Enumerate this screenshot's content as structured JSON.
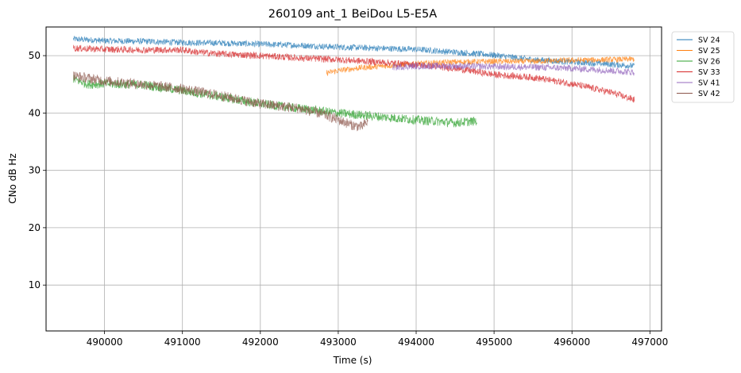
{
  "chart_data": {
    "type": "line",
    "title": "260109 ant_1 BeiDou L5-E5A",
    "xlabel": "Time (s)",
    "ylabel": "CNo dB Hz",
    "xlim": [
      489250,
      497150
    ],
    "ylim": [
      2,
      55
    ],
    "xticks": [
      490000,
      491000,
      492000,
      493000,
      494000,
      495000,
      496000,
      497000
    ],
    "yticks": [
      10,
      20,
      30,
      40,
      50
    ],
    "grid": true,
    "legend_position": "upper-right-outside",
    "series": [
      {
        "name": "SV 24",
        "color": "#1f77b4",
        "noise": 0.55,
        "points": [
          [
            489600,
            52.9
          ],
          [
            490000,
            52.6
          ],
          [
            490500,
            52.5
          ],
          [
            491000,
            52.3
          ],
          [
            491500,
            52.2
          ],
          [
            492000,
            52.0
          ],
          [
            492500,
            51.8
          ],
          [
            493000,
            51.5
          ],
          [
            493500,
            51.3
          ],
          [
            494000,
            51.1
          ],
          [
            494500,
            50.6
          ],
          [
            495000,
            50.1
          ],
          [
            495500,
            49.3
          ],
          [
            496000,
            48.9
          ],
          [
            496500,
            48.5
          ],
          [
            496800,
            48.2
          ]
        ]
      },
      {
        "name": "SV 25",
        "color": "#ff7f0e",
        "noise": 0.5,
        "points": [
          [
            492850,
            47.0
          ],
          [
            493000,
            47.4
          ],
          [
            493300,
            47.9
          ],
          [
            493600,
            48.2
          ],
          [
            494000,
            48.6
          ],
          [
            494500,
            48.9
          ],
          [
            495000,
            49.0
          ],
          [
            495500,
            49.0
          ],
          [
            496000,
            49.2
          ],
          [
            496500,
            49.3
          ],
          [
            496800,
            49.4
          ]
        ]
      },
      {
        "name": "SV 26",
        "color": "#2ca02c",
        "noise": 0.8,
        "points": [
          [
            489600,
            45.9
          ],
          [
            489800,
            45.0
          ],
          [
            490000,
            45.1
          ],
          [
            490500,
            44.9
          ],
          [
            491000,
            43.9
          ],
          [
            491500,
            42.8
          ],
          [
            492000,
            41.6
          ],
          [
            492500,
            40.8
          ],
          [
            493000,
            40.0
          ],
          [
            493500,
            39.4
          ],
          [
            494000,
            38.8
          ],
          [
            494500,
            38.3
          ],
          [
            494780,
            38.6
          ]
        ]
      },
      {
        "name": "SV 33",
        "color": "#d62728",
        "noise": 0.6,
        "points": [
          [
            489600,
            51.3
          ],
          [
            490000,
            51.1
          ],
          [
            490500,
            51.0
          ],
          [
            491000,
            51.0
          ],
          [
            491200,
            50.6
          ],
          [
            491500,
            50.3
          ],
          [
            492000,
            50.0
          ],
          [
            492500,
            49.6
          ],
          [
            493000,
            49.3
          ],
          [
            493500,
            48.9
          ],
          [
            494000,
            48.4
          ],
          [
            494500,
            47.8
          ],
          [
            495000,
            46.7
          ],
          [
            495500,
            46.2
          ],
          [
            496000,
            45.1
          ],
          [
            496500,
            43.6
          ],
          [
            496800,
            42.3
          ]
        ]
      },
      {
        "name": "SV 41",
        "color": "#9467bd",
        "noise": 0.6,
        "points": [
          [
            493700,
            48.0
          ],
          [
            494000,
            48.2
          ],
          [
            494500,
            48.2
          ],
          [
            495000,
            48.1
          ],
          [
            495500,
            48.0
          ],
          [
            496000,
            47.8
          ],
          [
            496500,
            47.4
          ],
          [
            496800,
            47.1
          ]
        ]
      },
      {
        "name": "SV 42",
        "color": "#8c564b",
        "noise": 0.9,
        "points": [
          [
            489600,
            46.5
          ],
          [
            490000,
            45.6
          ],
          [
            490500,
            45.0
          ],
          [
            491000,
            44.2
          ],
          [
            491500,
            43.0
          ],
          [
            492000,
            41.6
          ],
          [
            492500,
            40.8
          ],
          [
            492800,
            39.8
          ],
          [
            493000,
            38.8
          ],
          [
            493200,
            37.8
          ],
          [
            493300,
            37.6
          ],
          [
            493380,
            38.5
          ]
        ]
      }
    ]
  }
}
